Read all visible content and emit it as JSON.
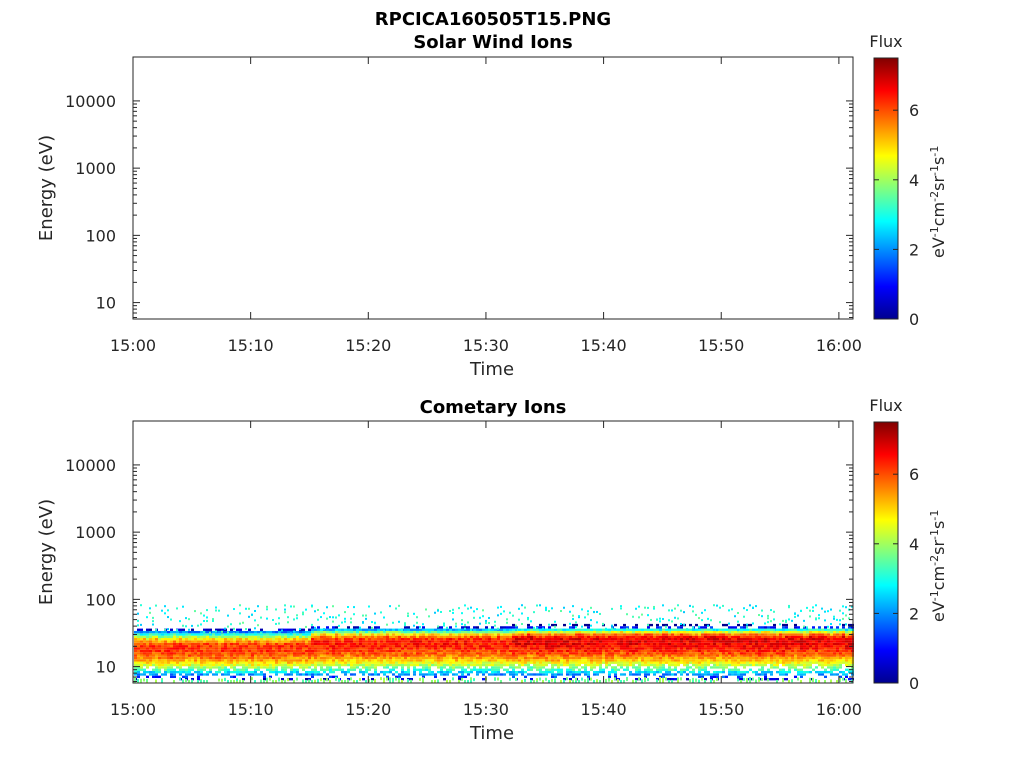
{
  "figure": {
    "title": "RPCICA160505T15.PNG"
  },
  "chart_data": [
    {
      "type": "heatmap",
      "title": "Solar Wind Ions",
      "xlabel": "Time",
      "ylabel": "Energy (eV)",
      "y_scale": "log",
      "x_ticks": [
        "15:00",
        "15:10",
        "15:20",
        "15:30",
        "15:40",
        "15:50",
        "16:00"
      ],
      "y_ticks": [
        "10",
        "100",
        "1000",
        "10000"
      ],
      "colorbar": {
        "label": "Flux",
        "units": "eV-1cm-2sr-1s-1",
        "range": [
          0,
          7.5
        ],
        "ticks": [
          "0",
          "2",
          "4",
          "6"
        ]
      },
      "data_description": "empty",
      "bands": []
    },
    {
      "type": "heatmap",
      "title": "Cometary Ions",
      "xlabel": "Time",
      "ylabel": "Energy (eV)",
      "y_scale": "log",
      "x_ticks": [
        "15:00",
        "15:10",
        "15:20",
        "15:30",
        "15:40",
        "15:50",
        "16:00"
      ],
      "y_ticks": [
        "10",
        "100",
        "1000",
        "10000"
      ],
      "colorbar": {
        "label": "Flux",
        "units": "eV-1cm-2sr-1s-1",
        "range": [
          0,
          7.5
        ],
        "ticks": [
          "0",
          "2",
          "4",
          "6"
        ]
      },
      "bands": [
        {
          "from_min": 0,
          "to_min": 15,
          "center_eV": 18,
          "low_eV": 7,
          "high_eV": 32,
          "peak_flux": 6.2
        },
        {
          "from_min": 15,
          "to_min": 32,
          "center_eV": 22,
          "low_eV": 7,
          "high_eV": 35,
          "peak_flux": 6.4
        },
        {
          "from_min": 32,
          "to_min": 61,
          "center_eV": 24,
          "low_eV": 7,
          "high_eV": 36,
          "peak_flux": 6.7
        }
      ],
      "scatter_upper_eV": 85
    }
  ],
  "colors": {
    "colormap": [
      "#00008f",
      "#0000ff",
      "#00ffff",
      "#ffff00",
      "#ff0000",
      "#800000"
    ]
  }
}
